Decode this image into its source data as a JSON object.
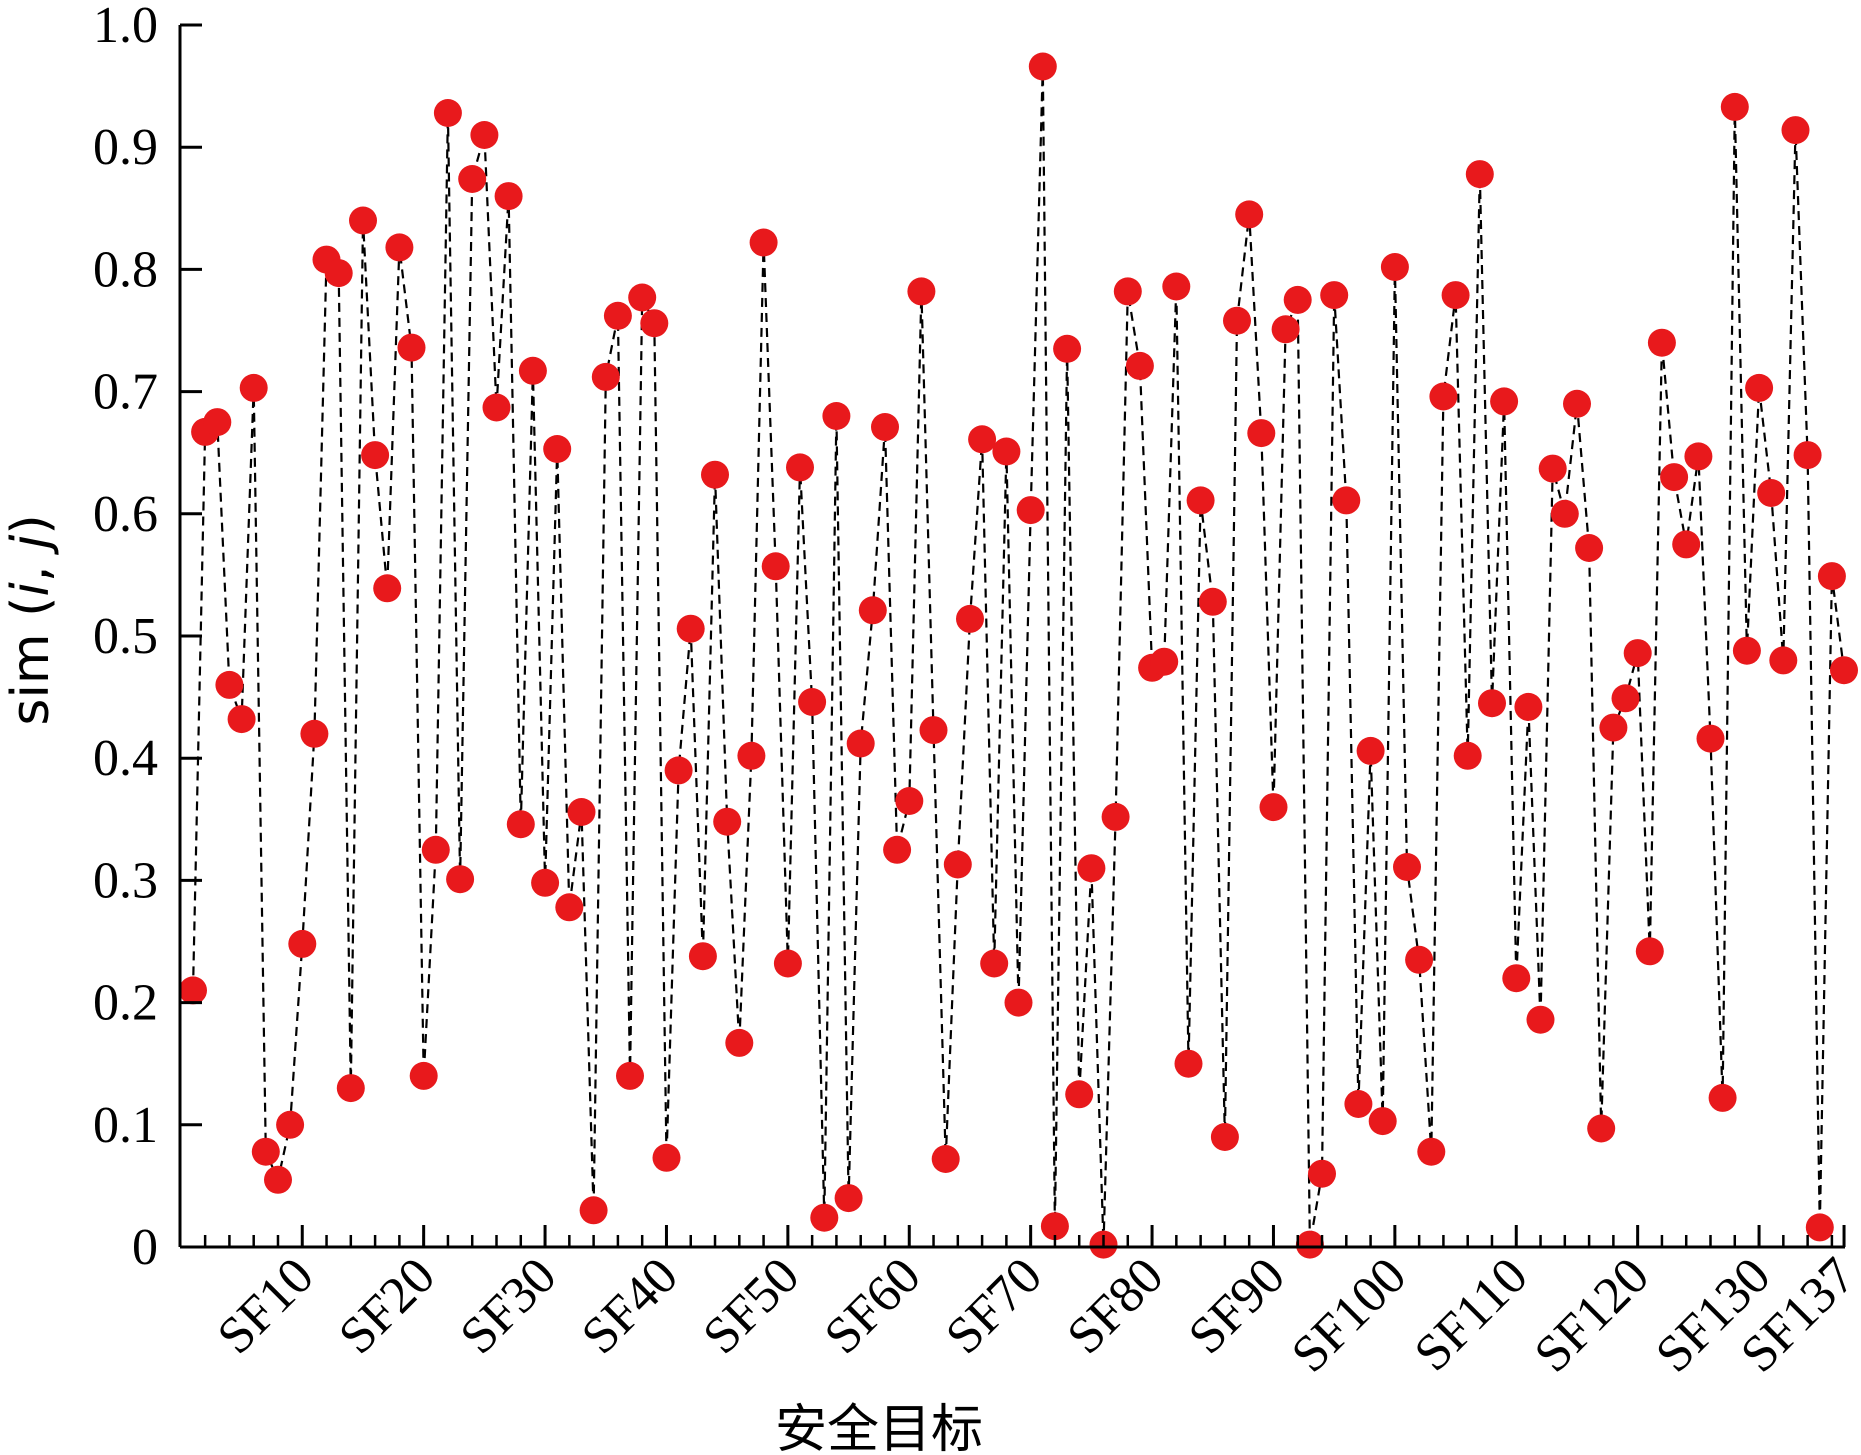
{
  "chart_data": {
    "type": "line",
    "line_style": "dashed",
    "marker_color": "#e8191c",
    "line_color": "#000000",
    "xlabel": "安全目标",
    "ylabel": {
      "prefix": "sim (",
      "i": "i",
      "sep": ", ",
      "j": "j",
      "suffix": ")"
    },
    "ylim": [
      0,
      1.0
    ],
    "xlim": [
      1,
      137
    ],
    "yticks": [
      {
        "v": 0,
        "label": "0"
      },
      {
        "v": 0.1,
        "label": "0.1"
      },
      {
        "v": 0.2,
        "label": "0.2"
      },
      {
        "v": 0.3,
        "label": "0.3"
      },
      {
        "v": 0.4,
        "label": "0.4"
      },
      {
        "v": 0.5,
        "label": "0.5"
      },
      {
        "v": 0.6,
        "label": "0.6"
      },
      {
        "v": 0.7,
        "label": "0.7"
      },
      {
        "v": 0.8,
        "label": "0.8"
      },
      {
        "v": 0.9,
        "label": "0.9"
      },
      {
        "v": 1.0,
        "label": "1.0"
      }
    ],
    "xticks": [
      {
        "v": 10,
        "label": "SF10"
      },
      {
        "v": 20,
        "label": "SF20"
      },
      {
        "v": 30,
        "label": "SF30"
      },
      {
        "v": 40,
        "label": "SF40"
      },
      {
        "v": 50,
        "label": "SF50"
      },
      {
        "v": 60,
        "label": "SF60"
      },
      {
        "v": 70,
        "label": "SF70"
      },
      {
        "v": 80,
        "label": "SF80"
      },
      {
        "v": 90,
        "label": "SF90"
      },
      {
        "v": 100,
        "label": "SF100"
      },
      {
        "v": 110,
        "label": "SF110"
      },
      {
        "v": 120,
        "label": "SF120"
      },
      {
        "v": 130,
        "label": "SF130"
      },
      {
        "v": 137,
        "label": "SF137"
      }
    ],
    "x_minor_step": 2,
    "grid": false,
    "legend": "none",
    "series": [
      {
        "x_start": 1,
        "values": [
          0.21,
          0.667,
          0.675,
          0.46,
          0.432,
          0.703,
          0.078,
          0.055,
          0.1,
          0.248,
          0.42,
          0.808,
          0.797,
          0.13,
          0.84,
          0.648,
          0.539,
          0.818,
          0.736,
          0.14,
          0.325,
          0.928,
          0.301,
          0.874,
          0.91,
          0.687,
          0.86,
          0.346,
          0.717,
          0.298,
          0.653,
          0.278,
          0.356,
          0.03,
          0.712,
          0.762,
          0.14,
          0.777,
          0.756,
          0.073,
          0.39,
          0.506,
          0.238,
          0.632,
          0.348,
          0.167,
          0.402,
          0.822,
          0.557,
          0.232,
          0.638,
          0.446,
          0.024,
          0.68,
          0.04,
          0.412,
          0.521,
          0.671,
          0.325,
          0.365,
          0.782,
          0.423,
          0.072,
          0.313,
          0.514,
          0.661,
          0.232,
          0.651,
          0.2,
          0.603,
          0.966,
          0.017,
          0.735,
          0.125,
          0.31,
          0.002,
          0.352,
          0.782,
          0.721,
          0.474,
          0.479,
          0.786,
          0.15,
          0.611,
          0.528,
          0.09,
          0.758,
          0.845,
          0.666,
          0.36,
          0.751,
          0.775,
          0.002,
          0.06,
          0.779,
          0.611,
          0.117,
          0.406,
          0.103,
          0.802,
          0.311,
          0.235,
          0.078,
          0.696,
          0.779,
          0.402,
          0.878,
          0.445,
          0.692,
          0.22,
          0.442,
          0.186,
          0.637,
          0.6,
          0.69,
          0.572,
          0.097,
          0.425,
          0.449,
          0.486,
          0.242,
          0.74,
          0.63,
          0.575,
          0.647,
          0.416,
          0.122,
          0.933,
          0.488,
          0.703,
          0.617,
          0.48,
          0.914,
          0.648,
          0.016,
          0.549,
          0.472
        ]
      }
    ]
  }
}
